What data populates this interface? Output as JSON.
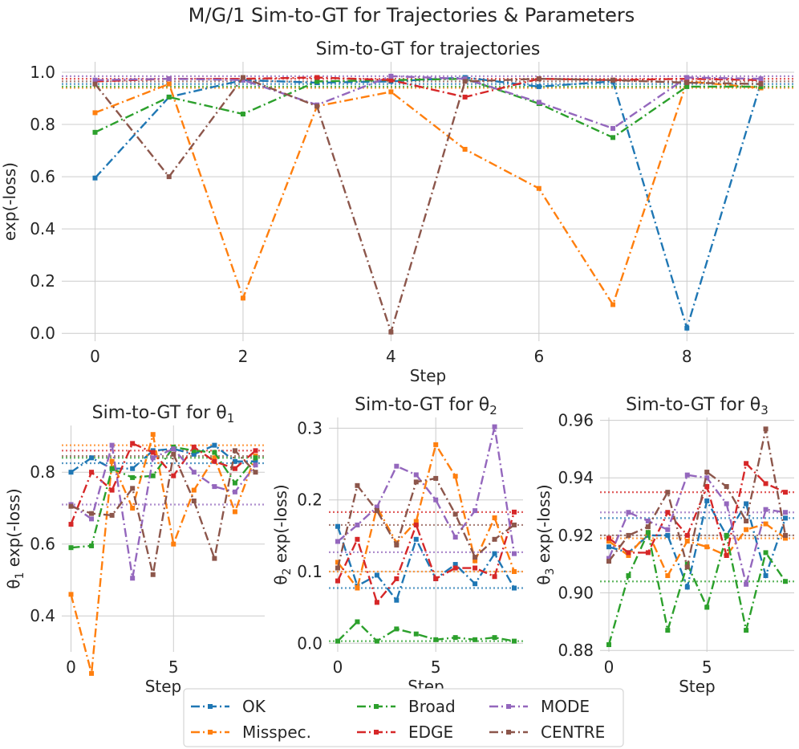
{
  "suptitle": "M/G/1 Sim-to-GT for Trajectories & Parameters",
  "colors": {
    "OK": "#1f77b4",
    "Misspec.": "#ff7f0e",
    "Broad": "#2ca02c",
    "EDGE": "#d62728",
    "MODE": "#9467bd",
    "CENTRE": "#8c564b"
  },
  "legend": {
    "entries": [
      "OK",
      "Misspec.",
      "Broad",
      "EDGE",
      "MODE",
      "CENTRE"
    ],
    "ncol": 3,
    "placement": "bottom-center"
  },
  "chart_data": [
    {
      "id": "traj",
      "type": "line",
      "title": "Sim-to-GT for trajectories",
      "xlabel": "Step",
      "ylabel": "exp(-loss)",
      "xlim": [
        -0.45,
        9.45
      ],
      "ylim": [
        -0.03,
        1.04
      ],
      "xticks": [
        0,
        2,
        4,
        6,
        8
      ],
      "yticks": [
        0.0,
        0.2,
        0.4,
        0.6,
        0.8,
        1.0
      ],
      "ytick_labels": [
        "0.0",
        "0.2",
        "0.4",
        "0.6",
        "0.8",
        "1.0"
      ],
      "x": [
        0,
        1,
        2,
        3,
        4,
        5,
        6,
        7,
        8,
        9
      ],
      "series": [
        {
          "name": "OK",
          "values": [
            0.595,
            0.905,
            0.97,
            0.96,
            0.965,
            0.98,
            0.945,
            0.965,
            0.02,
            0.96
          ],
          "ref": 0.955
        },
        {
          "name": "Misspec.",
          "values": [
            0.845,
            0.955,
            0.135,
            0.87,
            0.925,
            0.705,
            0.555,
            0.11,
            0.965,
            0.94
          ],
          "ref": 0.94
        },
        {
          "name": "Broad",
          "values": [
            0.77,
            0.905,
            0.84,
            0.965,
            0.97,
            0.975,
            0.88,
            0.75,
            0.945,
            0.945
          ],
          "ref": 0.945
        },
        {
          "name": "EDGE",
          "values": [
            0.965,
            0.975,
            0.975,
            0.98,
            0.97,
            0.905,
            0.975,
            0.97,
            0.975,
            0.97
          ],
          "ref": 0.975
        },
        {
          "name": "MODE",
          "values": [
            0.97,
            0.975,
            0.97,
            0.875,
            0.985,
            0.975,
            0.885,
            0.785,
            0.98,
            0.975
          ],
          "ref": 0.985
        },
        {
          "name": "CENTRE",
          "values": [
            0.955,
            0.6,
            0.98,
            0.87,
            0.005,
            0.965,
            0.975,
            0.97,
            0.96,
            0.955
          ],
          "ref": 0.965
        }
      ]
    },
    {
      "id": "theta1",
      "type": "line",
      "title": "Sim-to-GT for θ",
      "title_sub": "1",
      "xlabel": "Step",
      "ylabel": "θ",
      "ylabel_sub": "1",
      "ylabel_rest": " exp(-loss)",
      "xlim": [
        -0.45,
        9.45
      ],
      "ylim": [
        0.3,
        0.93
      ],
      "xticks": [
        0,
        5
      ],
      "yticks": [
        0.4,
        0.6,
        0.8
      ],
      "ytick_labels": [
        "0.4",
        "0.6",
        "0.8"
      ],
      "x": [
        0,
        1,
        2,
        3,
        4,
        5,
        6,
        7,
        8,
        9
      ],
      "series": [
        {
          "name": "OK",
          "values": [
            0.8,
            0.84,
            0.81,
            0.81,
            0.86,
            0.865,
            0.85,
            0.875,
            0.83,
            0.83
          ],
          "ref": 0.825
        },
        {
          "name": "Misspec.",
          "values": [
            0.46,
            0.24,
            0.83,
            0.7,
            0.905,
            0.6,
            0.75,
            0.84,
            0.69,
            0.845
          ],
          "ref": 0.875
        },
        {
          "name": "Broad",
          "values": [
            0.59,
            0.595,
            0.81,
            0.785,
            0.79,
            0.87,
            0.86,
            0.855,
            0.77,
            0.84
          ],
          "ref": 0.84
        },
        {
          "name": "EDGE",
          "values": [
            0.655,
            0.8,
            0.75,
            0.88,
            0.855,
            0.79,
            0.87,
            0.83,
            0.81,
            0.86
          ],
          "ref": 0.86
        },
        {
          "name": "MODE",
          "values": [
            0.71,
            0.67,
            0.875,
            0.505,
            0.84,
            0.865,
            0.8,
            0.76,
            0.745,
            0.82
          ],
          "ref": 0.71
        },
        {
          "name": "CENTRE",
          "values": [
            0.705,
            0.685,
            0.68,
            0.755,
            0.515,
            0.85,
            0.72,
            0.56,
            0.86,
            0.8
          ],
          "ref": 0.845
        }
      ]
    },
    {
      "id": "theta2",
      "type": "line",
      "title": "Sim-to-GT for θ",
      "title_sub": "2",
      "xlabel": "Step",
      "ylabel": "θ",
      "ylabel_sub": "2",
      "ylabel_rest": " exp(-loss)",
      "xlim": [
        -0.45,
        9.45
      ],
      "ylim": [
        -0.012,
        0.315
      ],
      "xticks": [
        0,
        5
      ],
      "yticks": [
        0.0,
        0.1,
        0.2,
        0.3
      ],
      "ytick_labels": [
        "0.0",
        "0.1",
        "0.2",
        "0.3"
      ],
      "x": [
        0,
        1,
        2,
        3,
        4,
        5,
        6,
        7,
        8,
        9
      ],
      "series": [
        {
          "name": "OK",
          "values": [
            0.163,
            0.08,
            0.095,
            0.06,
            0.145,
            0.09,
            0.11,
            0.083,
            0.125,
            0.077
          ],
          "ref": 0.077
        },
        {
          "name": "Misspec.",
          "values": [
            0.113,
            0.077,
            0.19,
            0.14,
            0.17,
            0.277,
            0.233,
            0.115,
            0.175,
            0.1
          ],
          "ref": 0.1
        },
        {
          "name": "Broad",
          "values": [
            0.003,
            0.03,
            0.003,
            0.02,
            0.013,
            0.005,
            0.008,
            0.005,
            0.008,
            0.003
          ],
          "ref": 0.003
        },
        {
          "name": "EDGE",
          "values": [
            0.087,
            0.145,
            0.057,
            0.09,
            0.165,
            0.09,
            0.105,
            0.105,
            0.093,
            0.183
          ],
          "ref": 0.183
        },
        {
          "name": "MODE",
          "values": [
            0.142,
            0.165,
            0.19,
            0.247,
            0.235,
            0.2,
            0.148,
            0.185,
            0.302,
            0.125
          ],
          "ref": 0.127
        },
        {
          "name": "CENTRE",
          "values": [
            0.105,
            0.22,
            0.185,
            0.137,
            0.225,
            0.23,
            0.18,
            0.12,
            0.145,
            0.165
          ],
          "ref": 0.165
        }
      ]
    },
    {
      "id": "theta3",
      "type": "line",
      "title": "Sim-to-GT for θ",
      "title_sub": "3",
      "xlabel": "Step",
      "ylabel": "θ",
      "ylabel_sub": "3",
      "ylabel_rest": " exp(-loss)",
      "xlim": [
        -0.45,
        9.45
      ],
      "ylim": [
        0.8795,
        0.961
      ],
      "xticks": [
        0,
        5
      ],
      "yticks": [
        0.88,
        0.9,
        0.92,
        0.94,
        0.96
      ],
      "ytick_labels": [
        "0.88",
        "0.90",
        "0.92",
        "0.94",
        "0.96"
      ],
      "x": [
        0,
        1,
        2,
        3,
        4,
        5,
        6,
        7,
        8,
        9
      ],
      "series": [
        {
          "name": "OK",
          "values": [
            0.916,
            0.914,
            0.92,
            0.92,
            0.902,
            0.932,
            0.92,
            0.931,
            0.906,
            0.926
          ],
          "ref": 0.926
        },
        {
          "name": "Misspec.",
          "values": [
            0.918,
            0.913,
            0.921,
            0.906,
            0.918,
            0.916,
            0.913,
            0.922,
            0.924,
            0.919
          ],
          "ref": 0.919
        },
        {
          "name": "Broad",
          "values": [
            0.882,
            0.906,
            0.921,
            0.887,
            0.91,
            0.895,
            0.92,
            0.887,
            0.914,
            0.904
          ],
          "ref": 0.904
        },
        {
          "name": "EDGE",
          "values": [
            0.919,
            0.914,
            0.914,
            0.928,
            0.92,
            0.937,
            0.913,
            0.945,
            0.938,
            0.935
          ],
          "ref": 0.935
        },
        {
          "name": "MODE",
          "values": [
            0.912,
            0.928,
            0.925,
            0.922,
            0.941,
            0.94,
            0.931,
            0.903,
            0.929,
            0.928
          ],
          "ref": 0.928
        },
        {
          "name": "CENTRE",
          "values": [
            0.911,
            0.92,
            0.923,
            0.935,
            0.909,
            0.942,
            0.937,
            0.925,
            0.957,
            0.92
          ],
          "ref": 0.92
        }
      ]
    }
  ]
}
